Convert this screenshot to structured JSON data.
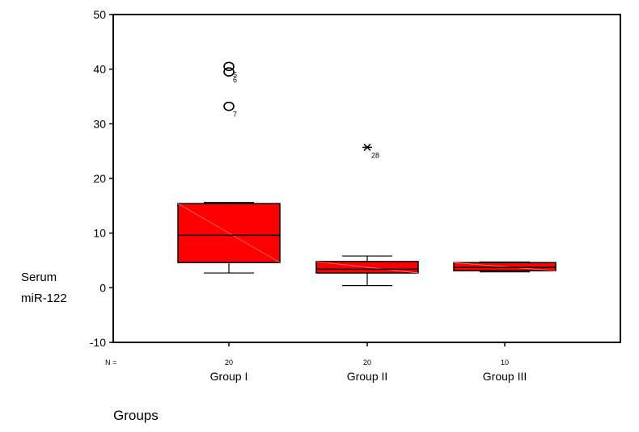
{
  "chart_data": {
    "type": "box",
    "title": "",
    "xlabel": "Groups",
    "ylabel": [
      "Serum",
      "miR-122"
    ],
    "n_prefix": "N =",
    "ylim": [
      -10,
      50
    ],
    "yticks": [
      -10,
      0,
      10,
      20,
      30,
      40,
      50
    ],
    "grid": false,
    "box_color": "#ff0000",
    "categories": [
      "Group I",
      "Group II",
      "Group III"
    ],
    "series": [
      {
        "category": "Group I",
        "n": "20",
        "whisker_low": 2.7,
        "q1": 4.6,
        "median": 9.6,
        "q3": 15.4,
        "whisker_high": 15.6,
        "outliers": [
          {
            "value": 40.5,
            "label": "5",
            "marker": "circle"
          },
          {
            "value": 39.5,
            "label": "6",
            "marker": "circle"
          },
          {
            "value": 33.2,
            "label": "7",
            "marker": "circle"
          }
        ]
      },
      {
        "category": "Group II",
        "n": "20",
        "whisker_low": 0.4,
        "q1": 2.7,
        "median": 3.4,
        "q3": 4.8,
        "whisker_high": 5.8,
        "outliers": [
          {
            "value": 25.7,
            "label": "28",
            "marker": "asterisk"
          }
        ]
      },
      {
        "category": "Group III",
        "n": "10",
        "whisker_low": 2.9,
        "q1": 3.1,
        "median": 3.7,
        "q3": 4.6,
        "whisker_high": 4.7,
        "outliers": []
      }
    ]
  }
}
